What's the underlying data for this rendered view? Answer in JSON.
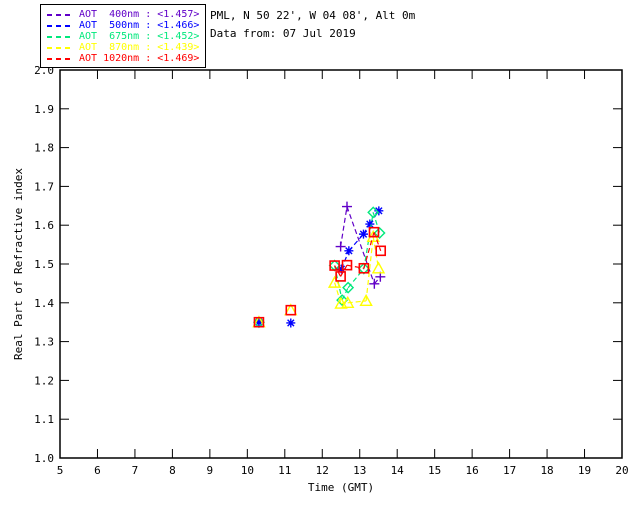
{
  "header": {
    "line1": "PML, N 50 22', W 04 08', Alt 0m",
    "line2": "Data from: 07 Jul 2019"
  },
  "legend": {
    "position": "top-left",
    "entries": [
      {
        "label": "AOT  400nm : <1.457>",
        "wavelength_nm": 400,
        "mean_value": 1.457,
        "color": "#6100C8",
        "marker": "plus"
      },
      {
        "label": "AOT  500nm : <1.466>",
        "wavelength_nm": 500,
        "mean_value": 1.466,
        "color": "#0000FF",
        "marker": "asterisk"
      },
      {
        "label": "AOT  675nm : <1.452>",
        "wavelength_nm": 675,
        "mean_value": 1.452,
        "color": "#00E87C",
        "marker": "diamond"
      },
      {
        "label": "AOT  870nm : <1.439>",
        "wavelength_nm": 870,
        "mean_value": 1.439,
        "color": "#FFFF00",
        "marker": "triangle"
      },
      {
        "label": "AOT 1020nm : <1.469>",
        "wavelength_nm": 1020,
        "mean_value": 1.469,
        "color": "#FF0000",
        "marker": "square"
      }
    ]
  },
  "chart_data": {
    "type": "line",
    "title": "",
    "xlabel": "Time (GMT)",
    "ylabel": "Real Part of Refractive index",
    "xlim": [
      5,
      20
    ],
    "ylim": [
      1.0,
      2.0
    ],
    "xticks": [
      5,
      6,
      7,
      8,
      9,
      10,
      11,
      12,
      13,
      14,
      15,
      16,
      17,
      18,
      19,
      20
    ],
    "yticks": [
      1.0,
      1.1,
      1.2,
      1.3,
      1.4,
      1.5,
      1.6,
      1.7,
      1.8,
      1.9,
      2.0
    ],
    "ytick_labels": [
      "1.0",
      "1.1",
      "1.2",
      "1.3",
      "1.4",
      "1.5",
      "1.6",
      "1.7",
      "1.8",
      "1.9",
      "2.0"
    ],
    "grid": false,
    "line_style": "dashed",
    "gap_threshold_hours": 0.8,
    "axis_color": "#000000",
    "background": "#FFFFFF",
    "series": [
      {
        "name": "AOT 400nm",
        "color": "#6100C8",
        "marker": "plus",
        "points": [
          [
            10.31,
            1.35
          ],
          [
            12.49,
            1.545
          ],
          [
            12.66,
            1.648
          ],
          [
            13.39,
            1.449
          ],
          [
            13.55,
            1.467
          ]
        ]
      },
      {
        "name": "AOT 500nm",
        "color": "#0000FF",
        "marker": "asterisk",
        "points": [
          [
            10.31,
            1.35
          ],
          [
            11.16,
            1.348
          ],
          [
            12.51,
            1.487
          ],
          [
            12.71,
            1.534
          ],
          [
            13.1,
            1.577
          ],
          [
            13.27,
            1.603
          ],
          [
            13.51,
            1.637
          ]
        ]
      },
      {
        "name": "AOT 675nm",
        "color": "#00E87C",
        "marker": "diamond",
        "points": [
          [
            10.31,
            1.35
          ],
          [
            12.33,
            1.496
          ],
          [
            12.53,
            1.407
          ],
          [
            12.69,
            1.439
          ],
          [
            13.11,
            1.488
          ],
          [
            13.36,
            1.633
          ],
          [
            13.53,
            1.58
          ]
        ]
      },
      {
        "name": "AOT 870nm",
        "color": "#FFFF00",
        "marker": "triangle",
        "points": [
          [
            10.31,
            1.35
          ],
          [
            11.16,
            1.381
          ],
          [
            12.33,
            1.452
          ],
          [
            12.5,
            1.398
          ],
          [
            12.68,
            1.4
          ],
          [
            13.17,
            1.405
          ],
          [
            13.36,
            1.57
          ],
          [
            13.5,
            1.489
          ]
        ]
      },
      {
        "name": "AOT 1020nm",
        "color": "#FF0000",
        "marker": "square",
        "points": [
          [
            10.31,
            1.35
          ],
          [
            11.16,
            1.381
          ],
          [
            12.33,
            1.496
          ],
          [
            12.49,
            1.468
          ],
          [
            12.66,
            1.497
          ],
          [
            13.11,
            1.489
          ],
          [
            13.38,
            1.582
          ],
          [
            13.56,
            1.534
          ]
        ]
      }
    ]
  }
}
